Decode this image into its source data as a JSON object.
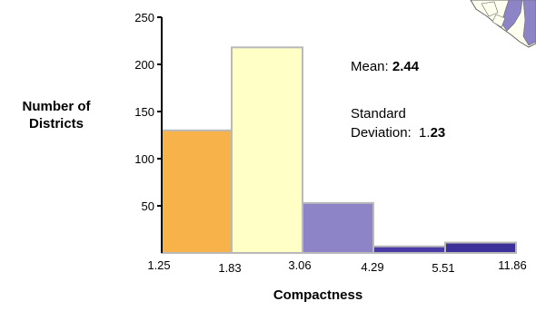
{
  "chart_data": {
    "type": "bar",
    "bin_edges": [
      "1.25",
      "1.83",
      "3.06",
      "4.29",
      "5.51",
      "11.86"
    ],
    "values": [
      130,
      218,
      53,
      7,
      11
    ],
    "colors": [
      "#f7b24a",
      "#ffffc6",
      "#8c84c6",
      "#4a3aa5",
      "#3b3199"
    ],
    "ylim": [
      0,
      250
    ],
    "yticks": [
      50,
      100,
      150,
      200,
      250
    ],
    "ylabel": "Number of Districts",
    "ylabel_lines": [
      "Number of",
      "Districts"
    ],
    "xlabel": "Compactness"
  },
  "stats": {
    "mean_label": "Mean:",
    "mean_value": "2.44",
    "sd_label_line1": "Standard",
    "sd_label_line2": "Deviation:",
    "sd_value_int": "1.",
    "sd_value_dec": "23"
  },
  "map": {
    "icon": "texas-map-icon",
    "fill": "#fffff0",
    "region_fill": "#8c84c6"
  }
}
